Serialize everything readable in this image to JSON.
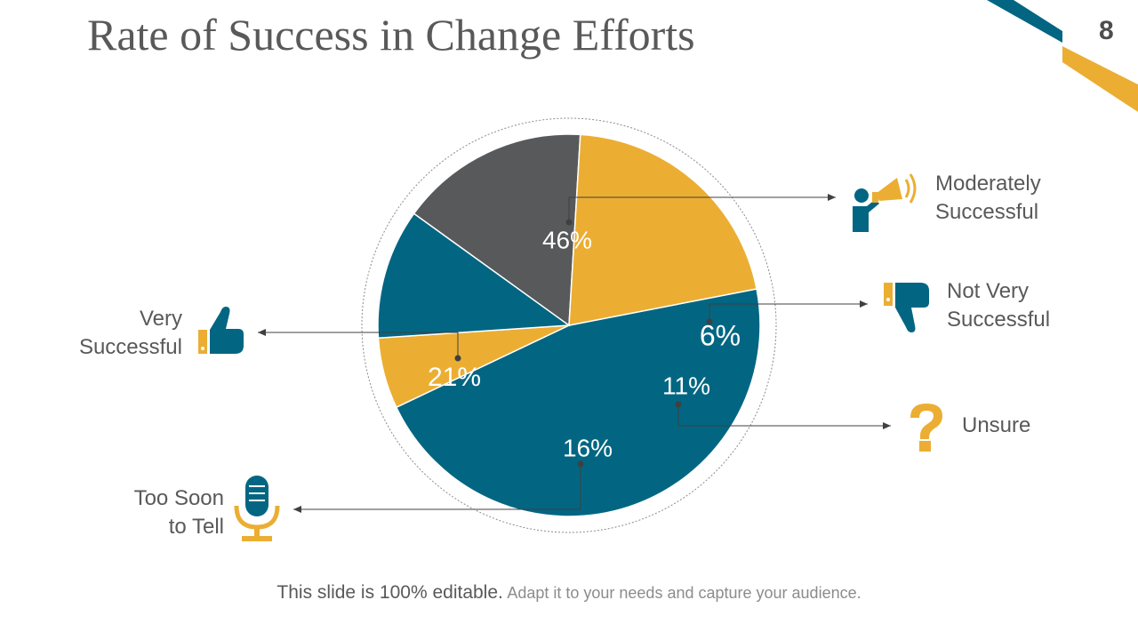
{
  "slide": {
    "title": "Rate of Success in Change Efforts",
    "page_number": "8",
    "footer_main": "This slide is 100% editable.",
    "footer_sub": "Adapt it to your needs and capture your audience."
  },
  "colors": {
    "teal": "#026682",
    "gold": "#EBAE33",
    "gray": "#58595B",
    "text": "#595959"
  },
  "chart_data": {
    "type": "pie",
    "slices": [
      {
        "label_lines": [
          "Moderately",
          "Successful"
        ],
        "value": 46,
        "display": "46%",
        "color": "#026682",
        "icon": "megaphone-person-icon"
      },
      {
        "label_lines": [
          "Not Very",
          "Successful"
        ],
        "value": 6,
        "display": "6%",
        "color": "#EBAE33",
        "icon": "thumbs-down-icon"
      },
      {
        "label_lines": [
          "Unsure"
        ],
        "value": 11,
        "display": "11%",
        "color": "#026682",
        "icon": "question-mark-icon"
      },
      {
        "label_lines": [
          "Too Soon",
          "to Tell"
        ],
        "value": 16,
        "display": "16%",
        "color": "#58595B",
        "icon": "microphone-icon"
      },
      {
        "label_lines": [
          "Very",
          "Successful"
        ],
        "value": 21,
        "display": "21%",
        "color": "#EBAE33",
        "icon": "thumbs-up-icon"
      }
    ]
  }
}
